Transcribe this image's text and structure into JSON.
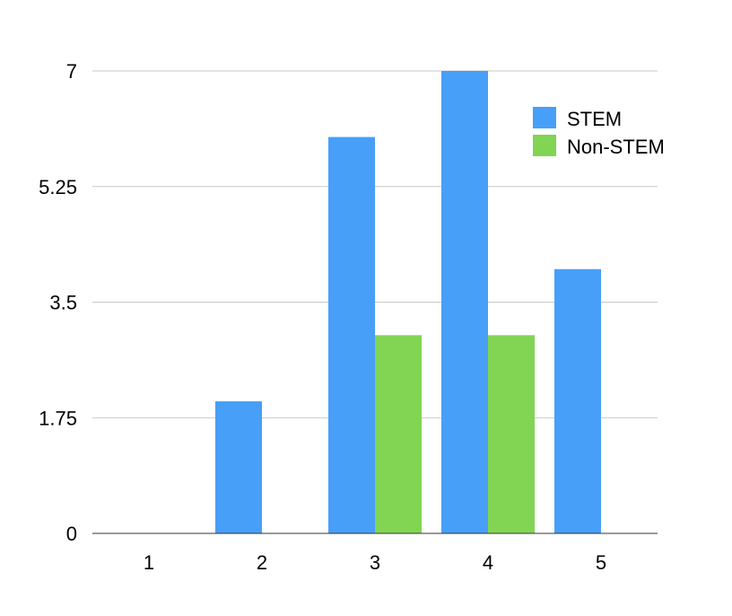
{
  "chart_data": {
    "type": "bar",
    "title": "",
    "xlabel": "",
    "ylabel": "",
    "categories": [
      "1",
      "2",
      "3",
      "4",
      "5"
    ],
    "series": [
      {
        "name": "STEM",
        "color": "#479ff8",
        "values": [
          0,
          2,
          6,
          7,
          4
        ]
      },
      {
        "name": "Non-STEM",
        "color": "#81d553",
        "values": [
          0,
          0,
          3,
          3,
          0
        ]
      }
    ],
    "ylim": [
      0,
      7
    ],
    "yticks": [
      0,
      1.75,
      3.5,
      5.25,
      7
    ],
    "ytick_labels": [
      "0",
      "1.75",
      "3.5",
      "5.25",
      "7"
    ],
    "grid": true,
    "legend_position": "top-right"
  }
}
